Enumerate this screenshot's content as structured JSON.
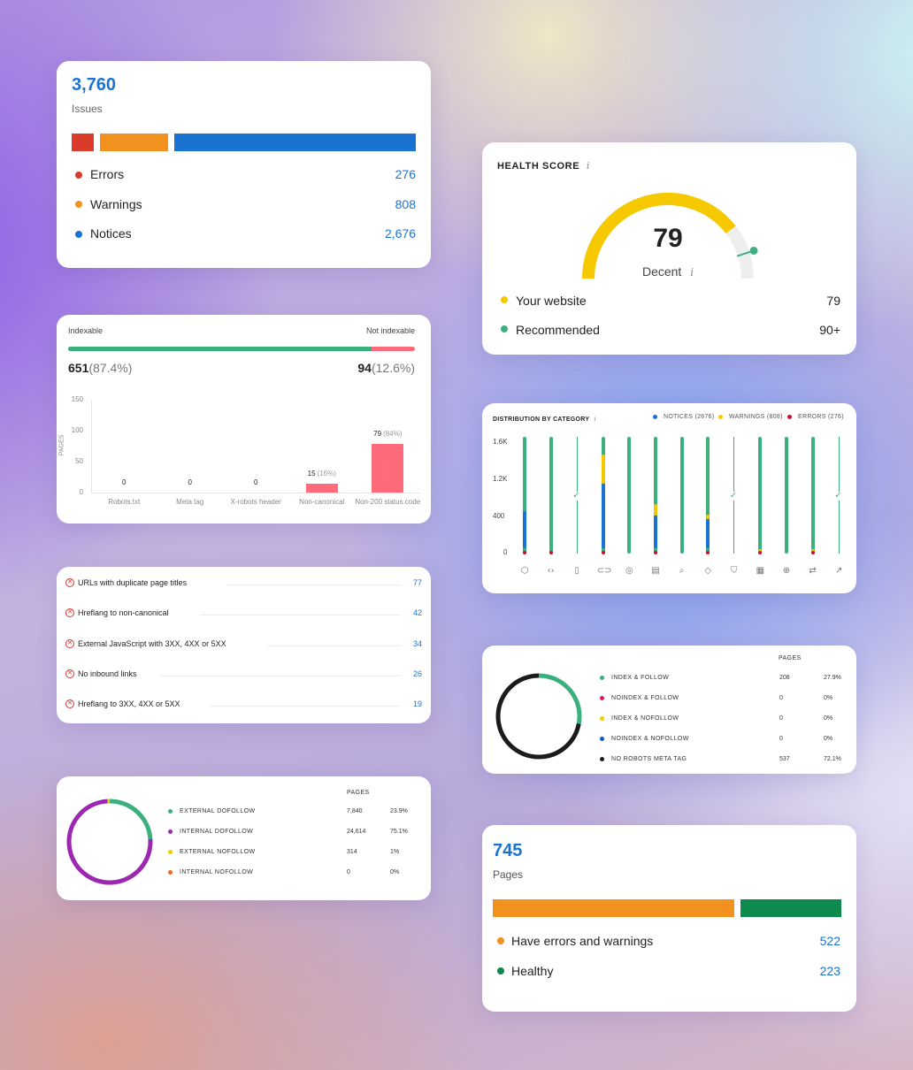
{
  "issues": {
    "total": "3,760",
    "label": "Issues",
    "rows": [
      {
        "label": "Errors",
        "value": "276",
        "color": "#db3b2b"
      },
      {
        "label": "Warnings",
        "value": "808",
        "color": "#f2921e"
      },
      {
        "label": "Notices",
        "value": "2,676",
        "color": "#1a73d0"
      }
    ]
  },
  "health": {
    "title": "HEALTH SCORE",
    "info_icon": "info-icon",
    "score": "79",
    "rating": "Decent",
    "gauge_value": 79,
    "gauge_max": 100,
    "colors": {
      "score": "#f5c800",
      "recommended": "#3ab07e",
      "track": "#eeeeee"
    },
    "rows": [
      {
        "label": "Your website",
        "value": "79",
        "color": "#f5c800"
      },
      {
        "label": "Recommended",
        "value": "90+",
        "color": "#3ab07e"
      }
    ]
  },
  "indexable": {
    "left_label": "Indexable",
    "right_label": "Not indexable",
    "indexable_count": "651",
    "indexable_pct": "(87.4%)",
    "not_indexable_count": "94",
    "not_indexable_pct": "(12.6%)",
    "indexable_fraction": 0.874,
    "colors": {
      "indexable": "#3ab07e",
      "not_indexable": "#ff6b7a"
    },
    "chart_data": {
      "type": "bar",
      "ylabel": "PAGES",
      "yticks": [
        "150",
        "100",
        "50",
        "0"
      ],
      "ylim": [
        0,
        150
      ],
      "categories": [
        "Robots.txt",
        "Meta tag",
        "X-robots header",
        "Non-canonical",
        "Non-200 status code"
      ],
      "values": [
        0,
        0,
        0,
        15,
        79
      ],
      "value_labels": [
        "0",
        "0",
        "0",
        "15",
        "79"
      ],
      "pct_labels": [
        "",
        "",
        "",
        "(16%)",
        "(84%)"
      ]
    }
  },
  "distribution": {
    "title": "DISTRIBUTION BY CATEGORY",
    "legend": [
      {
        "label": "NOTICES (2676)",
        "color": "#1a73d0"
      },
      {
        "label": "WARNINGS (808)",
        "color": "#f5c800"
      },
      {
        "label": "ERRORS (276)",
        "color": "#c8102e"
      }
    ],
    "chart_data": {
      "type": "bar",
      "yticks": [
        "1.6K",
        "1.2K",
        "400",
        "0"
      ],
      "category_icons": [
        "cube-icon",
        "code-icon",
        "mobile-icon",
        "link-icon",
        "settings-icon",
        "document-icon",
        "search-icon",
        "tag-icon",
        "shield-icon",
        "grid-icon",
        "globe-icon",
        "redirect-icon",
        "trend-icon"
      ],
      "series": [
        {
          "name": "NOTICES (2676)",
          "fractions": [
            0.32,
            0.0,
            0.0,
            0.55,
            0.0,
            0.28,
            0.0,
            0.25,
            0.0,
            0.0,
            0.0,
            0.0,
            0.0
          ]
        },
        {
          "name": "WARNINGS (808)",
          "fractions": [
            0.0,
            0.0,
            0.0,
            0.25,
            0.0,
            0.1,
            0.0,
            0.04,
            0.0,
            0.04,
            0.0,
            0.04,
            0.0
          ]
        },
        {
          "name": "ERRORS (276)",
          "fractions": [
            0.02,
            0.02,
            0.0,
            0.02,
            0.0,
            0.02,
            0.0,
            0.02,
            0.0,
            0.02,
            0.0,
            0.02,
            0.0
          ]
        }
      ],
      "checked": [
        false,
        false,
        true,
        false,
        false,
        false,
        false,
        false,
        true,
        false,
        false,
        false,
        true
      ]
    }
  },
  "issue_list": [
    {
      "label": "URLs with duplicate page titles",
      "count": "77"
    },
    {
      "label": "Hreflang to non-canonical",
      "count": "42"
    },
    {
      "label": "External JavaScript with 3XX, 4XX or 5XX",
      "count": "34"
    },
    {
      "label": "No inbound links",
      "count": "26"
    },
    {
      "label": "Hreflang to 3XX, 4XX or 5XX",
      "count": "19"
    }
  ],
  "robots": {
    "header": "PAGES",
    "rows": [
      {
        "label": "INDEX & FOLLOW",
        "count": "208",
        "pct": "27.9%",
        "value": 27.9,
        "color": "#3ab07e"
      },
      {
        "label": "NOINDEX & FOLLOW",
        "count": "0",
        "pct": "0%",
        "value": 0,
        "color": "#d81b60"
      },
      {
        "label": "INDEX & NOFOLLOW",
        "count": "0",
        "pct": "0%",
        "value": 0,
        "color": "#f5c800"
      },
      {
        "label": "NOINDEX & NOFOLLOW",
        "count": "0",
        "pct": "0%",
        "value": 0,
        "color": "#1a56d0"
      },
      {
        "label": "NO ROBOTS META TAG",
        "count": "537",
        "pct": "72.1%",
        "value": 72.1,
        "color": "#1b1b1b"
      }
    ]
  },
  "links": {
    "header": "PAGES",
    "rows": [
      {
        "label": "EXTERNAL DOFOLLOW",
        "count": "7,840",
        "pct": "23.9%",
        "value": 23.9,
        "color": "#3ab07e"
      },
      {
        "label": "INTERNAL DOFOLLOW",
        "count": "24,614",
        "pct": "75.1%",
        "value": 75.1,
        "color": "#9c27b0"
      },
      {
        "label": "EXTERNAL NOFOLLOW",
        "count": "314",
        "pct": "1%",
        "value": 1,
        "color": "#f5c800"
      },
      {
        "label": "INTERNAL NOFOLLOW",
        "count": "0",
        "pct": "0%",
        "value": 0,
        "color": "#f26522"
      }
    ]
  },
  "pages": {
    "total": "745",
    "label": "Pages",
    "rows": [
      {
        "label": "Have errors and warnings",
        "value": "522",
        "color": "#f2921e"
      },
      {
        "label": "Healthy",
        "value": "223",
        "color": "#0f8a4f"
      }
    ]
  }
}
